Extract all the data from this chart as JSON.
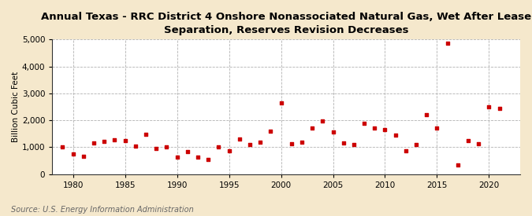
{
  "title": "Annual Texas - RRC District 4 Onshore Nonassociated Natural Gas, Wet After Lease\nSeparation, Reserves Revision Decreases",
  "ylabel": "Billion Cubic Feet",
  "source": "Source: U.S. Energy Information Administration",
  "background_color": "#f5e8cc",
  "plot_background_color": "#ffffff",
  "marker_color": "#cc0000",
  "years": [
    1979,
    1980,
    1981,
    1982,
    1983,
    1984,
    1985,
    1986,
    1987,
    1988,
    1989,
    1990,
    1991,
    1992,
    1993,
    1994,
    1995,
    1996,
    1997,
    1998,
    1999,
    2000,
    2001,
    2002,
    2003,
    2004,
    2005,
    2006,
    2007,
    2008,
    2009,
    2010,
    2011,
    2012,
    2013,
    2014,
    2015,
    2016,
    2017,
    2018,
    2019,
    2020,
    2021
  ],
  "values": [
    1020,
    750,
    650,
    1150,
    1220,
    1270,
    1260,
    1040,
    1490,
    950,
    1000,
    620,
    850,
    620,
    560,
    1010,
    870,
    1310,
    1110,
    1200,
    1600,
    2650,
    1120,
    1200,
    1700,
    1970,
    1570,
    1150,
    1100,
    1900,
    1700,
    1650,
    1450,
    870,
    1100,
    2200,
    1700,
    4850,
    350,
    1240,
    1130,
    2490,
    2440
  ],
  "xlim": [
    1978,
    2023
  ],
  "ylim": [
    0,
    5000
  ],
  "yticks": [
    0,
    1000,
    2000,
    3000,
    4000,
    5000
  ],
  "xticks": [
    1980,
    1985,
    1990,
    1995,
    2000,
    2005,
    2010,
    2015,
    2020
  ],
  "title_fontsize": 9.5,
  "label_fontsize": 7.5,
  "tick_fontsize": 7.5,
  "source_fontsize": 7
}
